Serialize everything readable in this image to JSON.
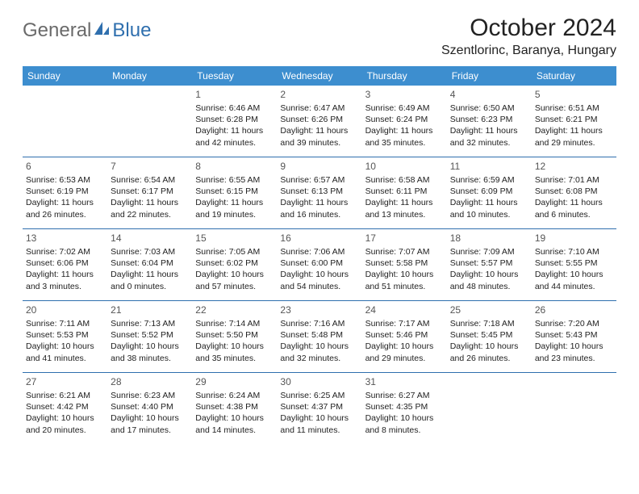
{
  "brand": {
    "general": "General",
    "blue": "Blue"
  },
  "header": {
    "month_title": "October 2024",
    "location": "Szentlorinc, Baranya, Hungary"
  },
  "colors": {
    "accent": "#3d8ecf",
    "rule": "#2f6fae",
    "logo_gray": "#6a6a6a",
    "logo_blue": "#2f6fae"
  },
  "day_names": [
    "Sunday",
    "Monday",
    "Tuesday",
    "Wednesday",
    "Thursday",
    "Friday",
    "Saturday"
  ],
  "first_weekday_index": 2,
  "days": [
    {
      "n": "1",
      "sunrise": "Sunrise: 6:46 AM",
      "sunset": "Sunset: 6:28 PM",
      "d1": "Daylight: 11 hours",
      "d2": "and 42 minutes."
    },
    {
      "n": "2",
      "sunrise": "Sunrise: 6:47 AM",
      "sunset": "Sunset: 6:26 PM",
      "d1": "Daylight: 11 hours",
      "d2": "and 39 minutes."
    },
    {
      "n": "3",
      "sunrise": "Sunrise: 6:49 AM",
      "sunset": "Sunset: 6:24 PM",
      "d1": "Daylight: 11 hours",
      "d2": "and 35 minutes."
    },
    {
      "n": "4",
      "sunrise": "Sunrise: 6:50 AM",
      "sunset": "Sunset: 6:23 PM",
      "d1": "Daylight: 11 hours",
      "d2": "and 32 minutes."
    },
    {
      "n": "5",
      "sunrise": "Sunrise: 6:51 AM",
      "sunset": "Sunset: 6:21 PM",
      "d1": "Daylight: 11 hours",
      "d2": "and 29 minutes."
    },
    {
      "n": "6",
      "sunrise": "Sunrise: 6:53 AM",
      "sunset": "Sunset: 6:19 PM",
      "d1": "Daylight: 11 hours",
      "d2": "and 26 minutes."
    },
    {
      "n": "7",
      "sunrise": "Sunrise: 6:54 AM",
      "sunset": "Sunset: 6:17 PM",
      "d1": "Daylight: 11 hours",
      "d2": "and 22 minutes."
    },
    {
      "n": "8",
      "sunrise": "Sunrise: 6:55 AM",
      "sunset": "Sunset: 6:15 PM",
      "d1": "Daylight: 11 hours",
      "d2": "and 19 minutes."
    },
    {
      "n": "9",
      "sunrise": "Sunrise: 6:57 AM",
      "sunset": "Sunset: 6:13 PM",
      "d1": "Daylight: 11 hours",
      "d2": "and 16 minutes."
    },
    {
      "n": "10",
      "sunrise": "Sunrise: 6:58 AM",
      "sunset": "Sunset: 6:11 PM",
      "d1": "Daylight: 11 hours",
      "d2": "and 13 minutes."
    },
    {
      "n": "11",
      "sunrise": "Sunrise: 6:59 AM",
      "sunset": "Sunset: 6:09 PM",
      "d1": "Daylight: 11 hours",
      "d2": "and 10 minutes."
    },
    {
      "n": "12",
      "sunrise": "Sunrise: 7:01 AM",
      "sunset": "Sunset: 6:08 PM",
      "d1": "Daylight: 11 hours",
      "d2": "and 6 minutes."
    },
    {
      "n": "13",
      "sunrise": "Sunrise: 7:02 AM",
      "sunset": "Sunset: 6:06 PM",
      "d1": "Daylight: 11 hours",
      "d2": "and 3 minutes."
    },
    {
      "n": "14",
      "sunrise": "Sunrise: 7:03 AM",
      "sunset": "Sunset: 6:04 PM",
      "d1": "Daylight: 11 hours",
      "d2": "and 0 minutes."
    },
    {
      "n": "15",
      "sunrise": "Sunrise: 7:05 AM",
      "sunset": "Sunset: 6:02 PM",
      "d1": "Daylight: 10 hours",
      "d2": "and 57 minutes."
    },
    {
      "n": "16",
      "sunrise": "Sunrise: 7:06 AM",
      "sunset": "Sunset: 6:00 PM",
      "d1": "Daylight: 10 hours",
      "d2": "and 54 minutes."
    },
    {
      "n": "17",
      "sunrise": "Sunrise: 7:07 AM",
      "sunset": "Sunset: 5:58 PM",
      "d1": "Daylight: 10 hours",
      "d2": "and 51 minutes."
    },
    {
      "n": "18",
      "sunrise": "Sunrise: 7:09 AM",
      "sunset": "Sunset: 5:57 PM",
      "d1": "Daylight: 10 hours",
      "d2": "and 48 minutes."
    },
    {
      "n": "19",
      "sunrise": "Sunrise: 7:10 AM",
      "sunset": "Sunset: 5:55 PM",
      "d1": "Daylight: 10 hours",
      "d2": "and 44 minutes."
    },
    {
      "n": "20",
      "sunrise": "Sunrise: 7:11 AM",
      "sunset": "Sunset: 5:53 PM",
      "d1": "Daylight: 10 hours",
      "d2": "and 41 minutes."
    },
    {
      "n": "21",
      "sunrise": "Sunrise: 7:13 AM",
      "sunset": "Sunset: 5:52 PM",
      "d1": "Daylight: 10 hours",
      "d2": "and 38 minutes."
    },
    {
      "n": "22",
      "sunrise": "Sunrise: 7:14 AM",
      "sunset": "Sunset: 5:50 PM",
      "d1": "Daylight: 10 hours",
      "d2": "and 35 minutes."
    },
    {
      "n": "23",
      "sunrise": "Sunrise: 7:16 AM",
      "sunset": "Sunset: 5:48 PM",
      "d1": "Daylight: 10 hours",
      "d2": "and 32 minutes."
    },
    {
      "n": "24",
      "sunrise": "Sunrise: 7:17 AM",
      "sunset": "Sunset: 5:46 PM",
      "d1": "Daylight: 10 hours",
      "d2": "and 29 minutes."
    },
    {
      "n": "25",
      "sunrise": "Sunrise: 7:18 AM",
      "sunset": "Sunset: 5:45 PM",
      "d1": "Daylight: 10 hours",
      "d2": "and 26 minutes."
    },
    {
      "n": "26",
      "sunrise": "Sunrise: 7:20 AM",
      "sunset": "Sunset: 5:43 PM",
      "d1": "Daylight: 10 hours",
      "d2": "and 23 minutes."
    },
    {
      "n": "27",
      "sunrise": "Sunrise: 6:21 AM",
      "sunset": "Sunset: 4:42 PM",
      "d1": "Daylight: 10 hours",
      "d2": "and 20 minutes."
    },
    {
      "n": "28",
      "sunrise": "Sunrise: 6:23 AM",
      "sunset": "Sunset: 4:40 PM",
      "d1": "Daylight: 10 hours",
      "d2": "and 17 minutes."
    },
    {
      "n": "29",
      "sunrise": "Sunrise: 6:24 AM",
      "sunset": "Sunset: 4:38 PM",
      "d1": "Daylight: 10 hours",
      "d2": "and 14 minutes."
    },
    {
      "n": "30",
      "sunrise": "Sunrise: 6:25 AM",
      "sunset": "Sunset: 4:37 PM",
      "d1": "Daylight: 10 hours",
      "d2": "and 11 minutes."
    },
    {
      "n": "31",
      "sunrise": "Sunrise: 6:27 AM",
      "sunset": "Sunset: 4:35 PM",
      "d1": "Daylight: 10 hours",
      "d2": "and 8 minutes."
    }
  ]
}
